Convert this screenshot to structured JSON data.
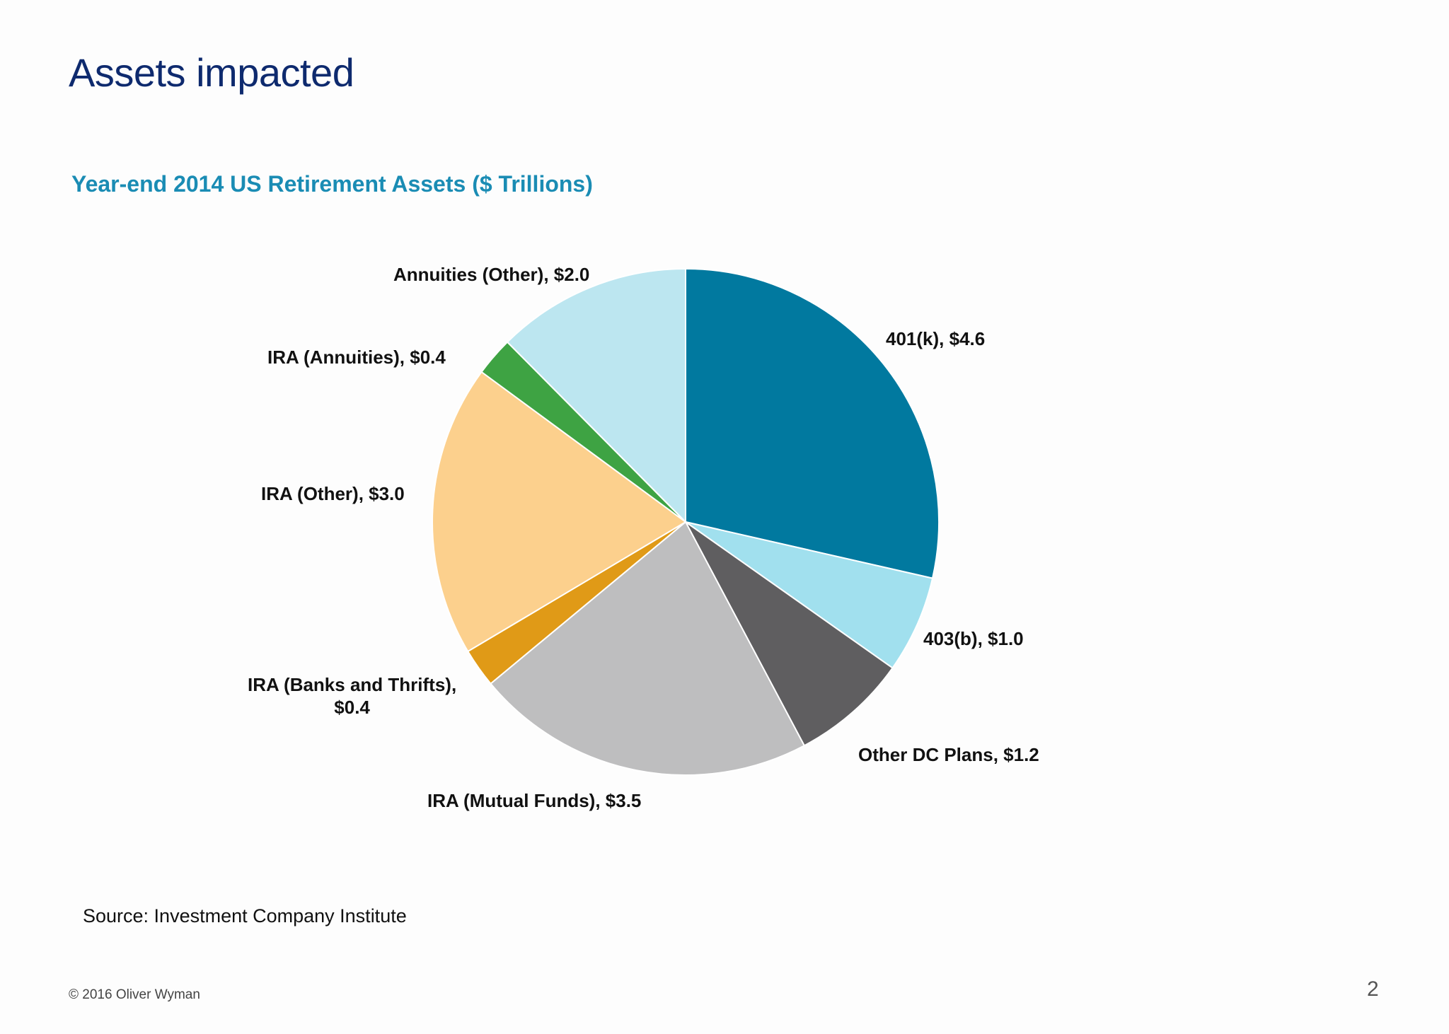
{
  "slide": {
    "title": "Assets impacted",
    "source": "Source: Investment Company Institute",
    "copyright": "© 2016 Oliver Wyman",
    "page_number": "2"
  },
  "chart_data": {
    "type": "pie",
    "title": "Year-end 2014 US Retirement Assets ($ Trillions)",
    "start": "12 o'clock, clockwise",
    "slices": [
      {
        "label": "401(k)",
        "value": 4.6,
        "display": "401(k),  $4.6",
        "color": "#01799f"
      },
      {
        "label": "403(b)",
        "value": 1.0,
        "display": "403(b),  $1.0",
        "color": "#a1e0ee"
      },
      {
        "label": "Other DC Plans",
        "value": 1.2,
        "display": "Other DC Plans,  $1.2",
        "color": "#5f5e60"
      },
      {
        "label": "IRA (Mutual Funds)",
        "value": 3.5,
        "display": "IRA (Mutual Funds),  $3.5",
        "color": "#bebebf"
      },
      {
        "label": "IRA (Banks and Thrifts)",
        "value": 0.4,
        "display": "IRA (Banks and Thrifts),\n$0.4",
        "color": "#e09a17"
      },
      {
        "label": "IRA (Other)",
        "value": 3.0,
        "display": "IRA (Other),  $3.0",
        "color": "#fcd08d"
      },
      {
        "label": "IRA (Annuities)",
        "value": 0.4,
        "display": "IRA (Annuities),  $0.4",
        "color": "#3ea343"
      },
      {
        "label": "Annuities (Other)",
        "value": 2.0,
        "display": "Annuities (Other),  $2.0",
        "color": "#bce6f0"
      }
    ]
  }
}
